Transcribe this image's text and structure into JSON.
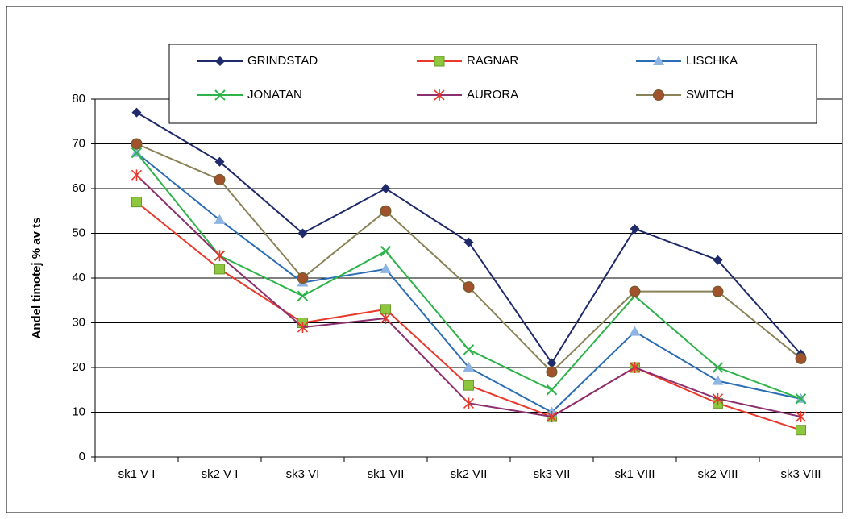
{
  "chart_data": {
    "type": "line",
    "y_label": "Andel timotej % av ts",
    "categories": [
      "sk1 V I",
      "sk2 V I",
      "sk3 VI",
      "sk1 VII",
      "sk2 VII",
      "sk3 VII",
      "sk1 VIII",
      "sk2 VIII",
      "sk3 VIII"
    ],
    "ylim": [
      0,
      80
    ],
    "yticks": [
      0,
      10,
      20,
      30,
      40,
      50,
      60,
      70,
      80
    ],
    "grid": true,
    "series": [
      {
        "name": "GRINDSTAD",
        "color": "#1f2a6b",
        "marker": "diamond",
        "marker_color": "#1f2a6b",
        "values": [
          77,
          66,
          50,
          60,
          48,
          21,
          51,
          44,
          23
        ]
      },
      {
        "name": "RAGNAR",
        "color": "#e8392b",
        "marker": "square",
        "marker_color": "#8dc63f",
        "values": [
          57,
          42,
          30,
          33,
          16,
          9,
          20,
          12,
          6
        ]
      },
      {
        "name": "LISCHKA",
        "color": "#2a6db5",
        "marker": "triangle",
        "marker_color": "#8db4e2",
        "values": [
          68,
          53,
          39,
          42,
          20,
          10,
          28,
          17,
          13
        ]
      },
      {
        "name": "JONATAN",
        "color": "#2db34a",
        "marker": "x",
        "marker_color": "#2db34a",
        "values": [
          68,
          45,
          36,
          46,
          24,
          15,
          36,
          20,
          13
        ]
      },
      {
        "name": "AURORA",
        "color": "#8b2f6e",
        "marker": "star",
        "marker_color": "#e8392b",
        "values": [
          63,
          45,
          29,
          31,
          12,
          9,
          20,
          13,
          9
        ]
      },
      {
        "name": "SWITCH",
        "color": "#8a8257",
        "marker": "circle",
        "marker_color": "#a0522d",
        "values": [
          70,
          62,
          40,
          55,
          38,
          19,
          37,
          37,
          22
        ]
      }
    ]
  }
}
